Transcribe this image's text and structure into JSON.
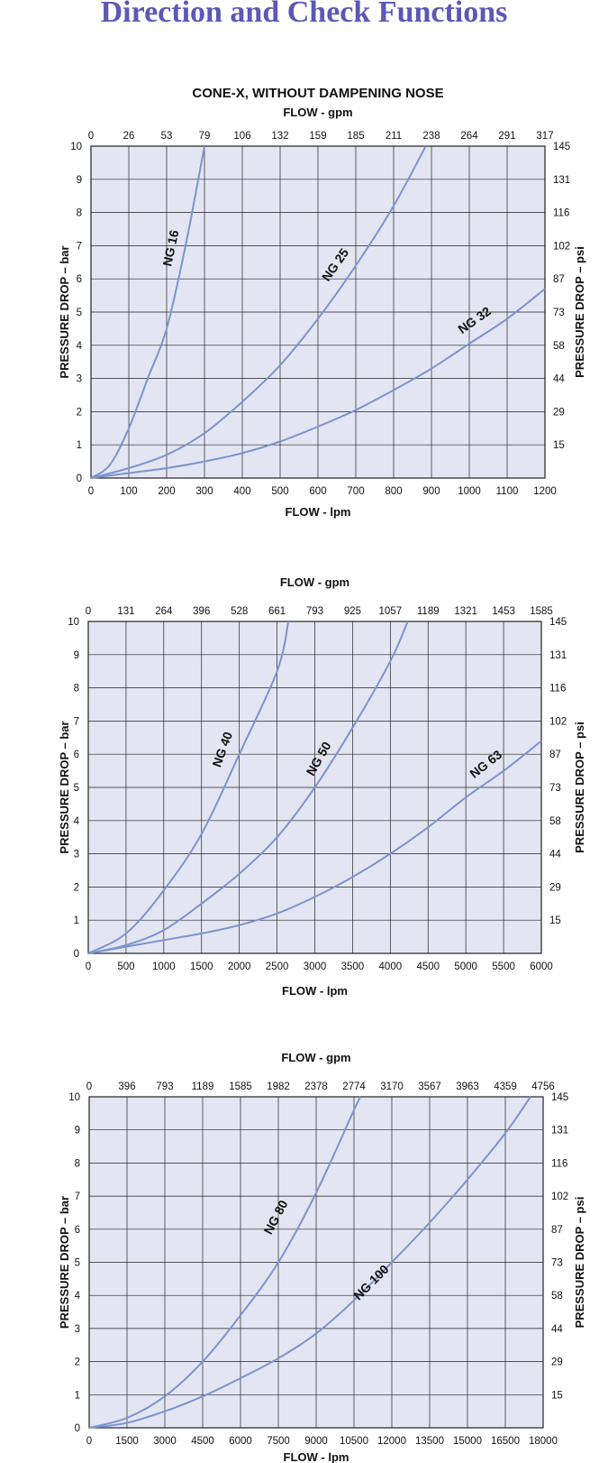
{
  "page": {
    "title": "Direction and Check Functions",
    "colors": {
      "title": "#5c58b4",
      "plot_background": "#e3e6f2",
      "curve": "#7b93cf",
      "grid": "#222222"
    }
  },
  "chart_data": [
    {
      "type": "line",
      "title": "CONE-X, WITHOUT DAMPENING NOSE",
      "xlabel": "FLOW - lpm",
      "x2label": "FLOW - gpm",
      "ylabel": "PRESSURE DROP – bar",
      "y2label": "PRESSURE DROP – psi",
      "xlim": [
        0,
        1200
      ],
      "ylim": [
        0,
        10
      ],
      "grid": true,
      "x_ticks": [
        "0",
        "100",
        "200",
        "300",
        "400",
        "500",
        "600",
        "700",
        "800",
        "900",
        "1000",
        "1100",
        "1200"
      ],
      "x2_ticks": [
        "0",
        "26",
        "53",
        "79",
        "106",
        "132",
        "159",
        "185",
        "211",
        "238",
        "264",
        "291",
        "317"
      ],
      "y_ticks": [
        "0",
        "1",
        "2",
        "3",
        "4",
        "5",
        "6",
        "7",
        "8",
        "9",
        "10"
      ],
      "y2_ticks": [
        "",
        "15",
        "29",
        "44",
        "58",
        "73",
        "87",
        "102",
        "116",
        "131",
        "145"
      ],
      "series": [
        {
          "name": "NG 16",
          "label_at": [
            222,
            6.9
          ],
          "label_angle": -78,
          "x": [
            0,
            50,
            100,
            150,
            200,
            250,
            300
          ],
          "y": [
            0,
            0.4,
            1.5,
            3.0,
            4.5,
            7.0,
            10.0
          ]
        },
        {
          "name": "NG 25",
          "label_at": [
            655,
            6.35
          ],
          "label_angle": -55,
          "x": [
            0,
            100,
            200,
            300,
            400,
            500,
            600,
            700,
            800,
            885
          ],
          "y": [
            0,
            0.3,
            0.7,
            1.35,
            2.3,
            3.4,
            4.8,
            6.4,
            8.2,
            10.0
          ]
        },
        {
          "name": "NG 32",
          "label_at": [
            1020,
            4.65
          ],
          "label_angle": -35,
          "x": [
            0,
            100,
            200,
            300,
            400,
            500,
            600,
            700,
            800,
            900,
            1000,
            1100,
            1200
          ],
          "y": [
            0,
            0.15,
            0.3,
            0.5,
            0.75,
            1.1,
            1.55,
            2.05,
            2.65,
            3.3,
            4.05,
            4.8,
            5.7
          ]
        }
      ]
    },
    {
      "type": "line",
      "title": "",
      "xlabel": "FLOW - lpm",
      "x2label": "FLOW - gpm",
      "ylabel": "PRESSURE DROP – bar",
      "y2label": "PRESSURE DROP – psi",
      "xlim": [
        0,
        6000
      ],
      "ylim": [
        0,
        10
      ],
      "grid": true,
      "x_ticks": [
        "0",
        "500",
        "1000",
        "1500",
        "2000",
        "2500",
        "3000",
        "3500",
        "4000",
        "4500",
        "5000",
        "5500",
        "6000"
      ],
      "x2_ticks": [
        "0",
        "131",
        "264",
        "396",
        "528",
        "661",
        "793",
        "925",
        "1057",
        "1189",
        "1321",
        "1453",
        "1585"
      ],
      "y_ticks": [
        "0",
        "1",
        "2",
        "3",
        "4",
        "5",
        "6",
        "7",
        "8",
        "9",
        "10"
      ],
      "y2_ticks": [
        "",
        "15",
        "29",
        "44",
        "58",
        "73",
        "87",
        "102",
        "116",
        "131",
        "145"
      ],
      "series": [
        {
          "name": "NG 40",
          "label_at": [
            1830,
            6.1
          ],
          "label_angle": -70,
          "x": [
            0,
            500,
            1000,
            1500,
            2000,
            2500,
            2650
          ],
          "y": [
            0,
            0.6,
            1.9,
            3.6,
            6.0,
            8.5,
            10.0
          ]
        },
        {
          "name": "NG 50",
          "label_at": [
            3100,
            5.8
          ],
          "label_angle": -60,
          "x": [
            0,
            500,
            1000,
            1500,
            2000,
            2500,
            3000,
            3500,
            4000,
            4230
          ],
          "y": [
            0,
            0.25,
            0.7,
            1.5,
            2.4,
            3.5,
            5.0,
            6.8,
            8.8,
            10.0
          ]
        },
        {
          "name": "NG 63",
          "label_at": [
            5300,
            5.6
          ],
          "label_angle": -38,
          "x": [
            0,
            500,
            1000,
            1500,
            2000,
            2500,
            3000,
            3500,
            4000,
            4500,
            5000,
            5500,
            6000
          ],
          "y": [
            0,
            0.2,
            0.4,
            0.6,
            0.85,
            1.2,
            1.7,
            2.3,
            3.0,
            3.8,
            4.7,
            5.5,
            6.4
          ]
        }
      ]
    },
    {
      "type": "line",
      "title": "",
      "xlabel": "FLOW - lpm",
      "x2label": "FLOW - gpm",
      "ylabel": "PRESSURE DROP – bar",
      "y2label": "PRESSURE DROP – psi",
      "xlim": [
        0,
        18000
      ],
      "ylim": [
        0,
        10
      ],
      "grid": true,
      "x_ticks": [
        "0",
        "1500",
        "3000",
        "4500",
        "6000",
        "7500",
        "9000",
        "10500",
        "12000",
        "13500",
        "15000",
        "16500",
        "18000"
      ],
      "x2_ticks": [
        "0",
        "396",
        "793",
        "1189",
        "1585",
        "1982",
        "2378",
        "2774",
        "3170",
        "3567",
        "3963",
        "4359",
        "4756"
      ],
      "y_ticks": [
        "0",
        "1",
        "2",
        "3",
        "4",
        "5",
        "6",
        "7",
        "8",
        "9",
        "10"
      ],
      "y2_ticks": [
        "",
        "15",
        "29",
        "44",
        "58",
        "73",
        "87",
        "102",
        "116",
        "131",
        "145"
      ],
      "series": [
        {
          "name": "NG 80",
          "label_at": [
            7550,
            6.3
          ],
          "label_angle": -62,
          "x": [
            0,
            1500,
            3000,
            4500,
            6000,
            7500,
            9000,
            10500,
            10750
          ],
          "y": [
            0,
            0.3,
            0.95,
            2.0,
            3.4,
            5.0,
            7.1,
            9.6,
            10.0
          ]
        },
        {
          "name": "NG 100",
          "label_at": [
            11300,
            4.3
          ],
          "label_angle": -45,
          "x": [
            0,
            1500,
            3000,
            4500,
            6000,
            7500,
            9000,
            10500,
            12000,
            13500,
            15000,
            16500,
            17500
          ],
          "y": [
            0,
            0.15,
            0.5,
            0.95,
            1.5,
            2.1,
            2.85,
            3.85,
            5.0,
            6.2,
            7.5,
            8.9,
            10.0
          ]
        }
      ]
    }
  ]
}
